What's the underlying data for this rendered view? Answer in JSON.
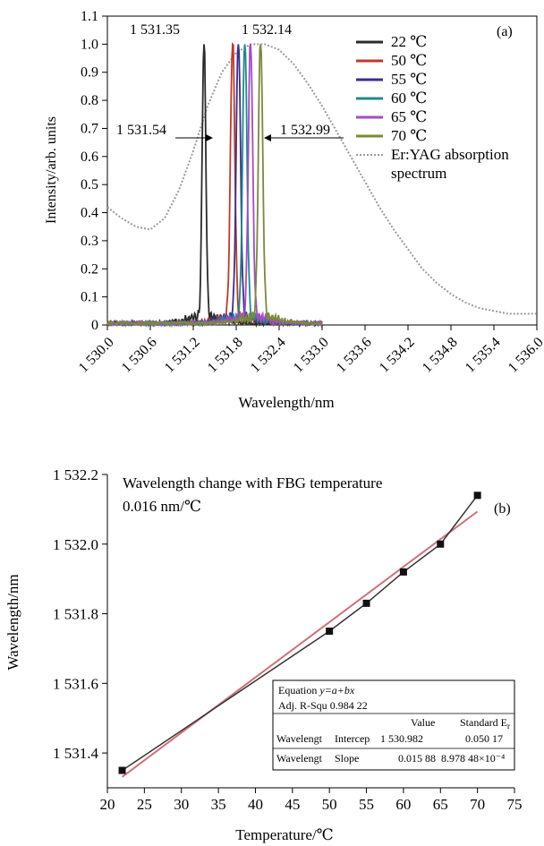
{
  "chart_data": [
    {
      "panel_label": "(a)",
      "type": "line",
      "xlabel": "Wavelength/nm",
      "ylabel": "Intensity/arb. units",
      "xlim": [
        1530.0,
        1536.0
      ],
      "ylim": [
        0,
        1.1
      ],
      "x_ticks": [
        1530.0,
        1530.6,
        1531.2,
        1531.8,
        1532.4,
        1533.0,
        1533.6,
        1534.2,
        1534.8,
        1535.4,
        1536.0
      ],
      "x_tick_labels": [
        "1 530.0",
        "1 530.6",
        "1 531.2",
        "1 531.8",
        "1 532.4",
        "1 533.0",
        "1 533.6",
        "1 534.2",
        "1 534.8",
        "1 535.4",
        "1 536.0"
      ],
      "y_ticks": [
        0,
        0.1,
        0.2,
        0.3,
        0.4,
        0.5,
        0.6,
        0.7,
        0.8,
        0.9,
        1.0,
        1.1
      ],
      "y_tick_labels": [
        "0",
        "0.1",
        "0.2",
        "0.3",
        "0.4",
        "0.5",
        "0.6",
        "0.7",
        "0.8",
        "0.9",
        "1.0",
        "1.1"
      ],
      "legend_position": "top-right",
      "series": [
        {
          "name": "22 ℃",
          "color": "#2b2b2b",
          "peak": 1531.35
        },
        {
          "name": "50 ℃",
          "color": "#c0392b",
          "peak": 1531.75
        },
        {
          "name": "55 ℃",
          "color": "#3a2f8f",
          "peak": 1531.83
        },
        {
          "name": "60 ℃",
          "color": "#1f8a8a",
          "peak": 1531.92
        },
        {
          "name": "65 ℃",
          "color": "#a64ac9",
          "peak": 1532.0
        },
        {
          "name": "70 ℃",
          "color": "#7a8a3a",
          "peak": 1532.14
        },
        {
          "name": "Er:YAG absorption spectrum",
          "color": "#9a9a9a",
          "style": "dotted",
          "x": [
            1530.0,
            1530.2,
            1530.4,
            1530.6,
            1530.8,
            1531.0,
            1531.2,
            1531.4,
            1531.6,
            1531.8,
            1532.0,
            1532.2,
            1532.4,
            1532.6,
            1532.8,
            1533.0,
            1533.2,
            1533.4,
            1533.6,
            1533.8,
            1534.0,
            1534.2,
            1534.4,
            1534.6,
            1534.8,
            1535.0,
            1535.2,
            1535.4,
            1535.6,
            1535.8,
            1536.0
          ],
          "y": [
            0.42,
            0.38,
            0.35,
            0.34,
            0.38,
            0.48,
            0.62,
            0.78,
            0.9,
            0.97,
            1.0,
            1.0,
            0.98,
            0.93,
            0.86,
            0.78,
            0.69,
            0.6,
            0.51,
            0.42,
            0.34,
            0.27,
            0.2,
            0.15,
            0.11,
            0.08,
            0.06,
            0.05,
            0.04,
            0.04,
            0.04
          ]
        }
      ],
      "annotations": {
        "peak_left": "1 531.35",
        "peak_right": "1 532.14",
        "edge_left": "1 531.54",
        "edge_right": "1 532.99"
      }
    },
    {
      "panel_label": "(b)",
      "type": "scatter",
      "title": "Wavelength change with FBG temperature",
      "subtitle": "0.016 nm/℃",
      "xlabel": "Temperature/℃",
      "ylabel": "Wavelength/nm",
      "xlim": [
        20,
        75
      ],
      "ylim": [
        1531.3,
        1532.2
      ],
      "x_ticks": [
        20,
        25,
        30,
        35,
        40,
        45,
        50,
        55,
        60,
        65,
        70,
        75
      ],
      "x_tick_labels": [
        "20",
        "25",
        "30",
        "35",
        "40",
        "45",
        "50",
        "55",
        "60",
        "65",
        "70",
        "75"
      ],
      "y_ticks": [
        1531.4,
        1531.6,
        1531.8,
        1532.0,
        1532.2
      ],
      "y_tick_labels": [
        "1 531.4",
        "1 531.6",
        "1 531.8",
        "1 532.0",
        "1 532.2"
      ],
      "points": {
        "x": [
          22,
          50,
          55,
          60,
          65,
          70
        ],
        "y": [
          1531.35,
          1531.75,
          1531.83,
          1531.92,
          1532.0,
          1532.14
        ]
      },
      "fit": {
        "intercept": 1530.982,
        "slope": 0.01588,
        "color": "#d0707a"
      },
      "fit_table": {
        "equation_label": "Equation",
        "equation": "y=a+bx",
        "adj_r_label": "Adj. R-Squ",
        "adj_r_value": "0.984 22",
        "col_value": "Value",
        "col_std": "Standard E",
        "col_std_sub": "r",
        "rows": [
          {
            "name": "Wavelengt",
            "param": "Intercep",
            "value": "1 530.982",
            "err": "0.050 17"
          },
          {
            "name": "Wavelengt",
            "param": "Slope",
            "value": "0.015 88",
            "err": "8.978 48×10⁻⁴"
          }
        ]
      }
    }
  ]
}
